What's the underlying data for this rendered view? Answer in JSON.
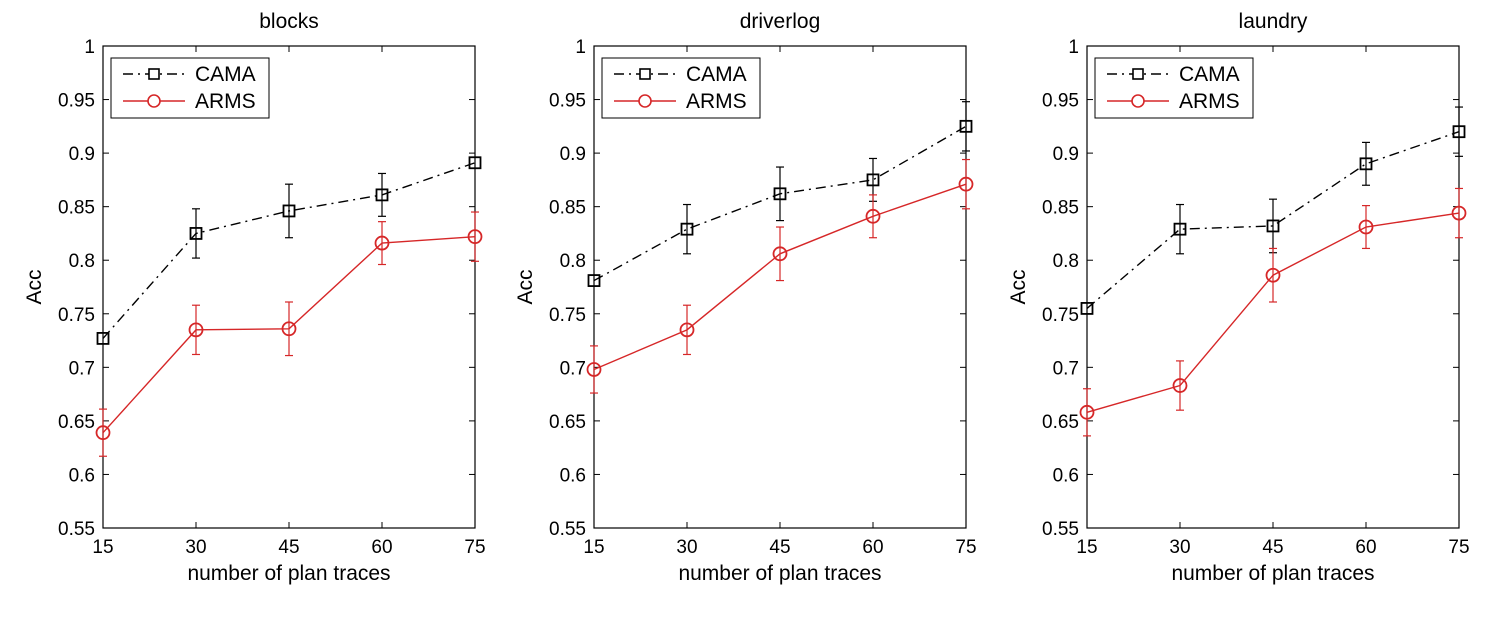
{
  "chart_data": [
    {
      "type": "line",
      "title": "blocks",
      "xlabel": "number of plan traces",
      "ylabel": "Acc",
      "x": [
        15,
        30,
        45,
        60,
        75
      ],
      "xticks": [
        "15",
        "30",
        "45",
        "60",
        "75"
      ],
      "ylim": [
        0.55,
        1.0
      ],
      "yticks": [
        "0.55",
        "0.6",
        "0.65",
        "0.7",
        "0.75",
        "0.8",
        "0.85",
        "0.9",
        "0.95",
        "1"
      ],
      "legend_position": "top-left",
      "series": [
        {
          "name": "CAMA",
          "color": "#000000",
          "line_style": "dash-dot",
          "marker": "square",
          "values": [
            0.727,
            0.825,
            0.846,
            0.861,
            0.891
          ],
          "errors": [
            0.0,
            0.023,
            0.025,
            0.02,
            0.0
          ]
        },
        {
          "name": "ARMS",
          "color": "#d62728",
          "line_style": "solid",
          "marker": "circle",
          "values": [
            0.639,
            0.735,
            0.736,
            0.816,
            0.822
          ],
          "errors": [
            0.022,
            0.023,
            0.025,
            0.02,
            0.023
          ]
        }
      ]
    },
    {
      "type": "line",
      "title": "driverlog",
      "xlabel": "number of plan traces",
      "ylabel": "Acc",
      "x": [
        15,
        30,
        45,
        60,
        75
      ],
      "xticks": [
        "15",
        "30",
        "45",
        "60",
        "75"
      ],
      "ylim": [
        0.55,
        1.0
      ],
      "yticks": [
        "0.55",
        "0.6",
        "0.65",
        "0.7",
        "0.75",
        "0.8",
        "0.85",
        "0.9",
        "0.95",
        "1"
      ],
      "legend_position": "top-left",
      "series": [
        {
          "name": "CAMA",
          "color": "#000000",
          "line_style": "dash-dot",
          "marker": "square",
          "values": [
            0.781,
            0.829,
            0.862,
            0.875,
            0.925
          ],
          "errors": [
            0.0,
            0.023,
            0.025,
            0.02,
            0.023
          ]
        },
        {
          "name": "ARMS",
          "color": "#d62728",
          "line_style": "solid",
          "marker": "circle",
          "values": [
            0.698,
            0.735,
            0.806,
            0.841,
            0.871
          ],
          "errors": [
            0.022,
            0.023,
            0.025,
            0.02,
            0.023
          ]
        }
      ]
    },
    {
      "type": "line",
      "title": "laundry",
      "xlabel": "number of plan traces",
      "ylabel": "Acc",
      "x": [
        15,
        30,
        45,
        60,
        75
      ],
      "xticks": [
        "15",
        "30",
        "45",
        "60",
        "75"
      ],
      "ylim": [
        0.55,
        1.0
      ],
      "yticks": [
        "0.55",
        "0.6",
        "0.65",
        "0.7",
        "0.75",
        "0.8",
        "0.85",
        "0.9",
        "0.95",
        "1"
      ],
      "legend_position": "top-left",
      "series": [
        {
          "name": "CAMA",
          "color": "#000000",
          "line_style": "dash-dot",
          "marker": "square",
          "values": [
            0.755,
            0.829,
            0.832,
            0.89,
            0.92
          ],
          "errors": [
            0.0,
            0.023,
            0.025,
            0.02,
            0.023
          ]
        },
        {
          "name": "ARMS",
          "color": "#d62728",
          "line_style": "solid",
          "marker": "circle",
          "values": [
            0.658,
            0.683,
            0.786,
            0.831,
            0.844
          ],
          "errors": [
            0.022,
            0.023,
            0.025,
            0.02,
            0.023
          ]
        }
      ]
    }
  ]
}
